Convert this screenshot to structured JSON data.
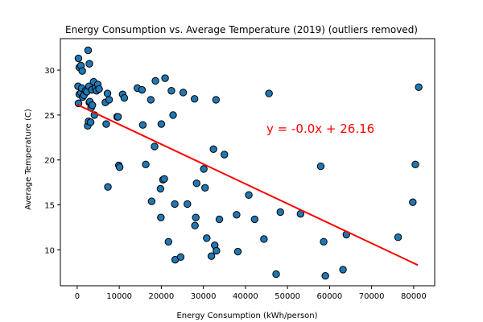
{
  "chart_data": {
    "type": "scatter",
    "title": "Energy Consumption vs. Average Temperature (2019) (outliers removed)",
    "xlabel": "Energy Consumption (kWh/person)",
    "ylabel": "Average Temperature (C)",
    "xlim": [
      -4000,
      85000
    ],
    "ylim": [
      6,
      33.5
    ],
    "xticks": [
      0,
      10000,
      20000,
      30000,
      40000,
      50000,
      60000,
      70000,
      80000
    ],
    "yticks": [
      10,
      15,
      20,
      25,
      30
    ],
    "grid": false,
    "marker_color": "#1f77b4",
    "marker_edge": "#000000",
    "regression": {
      "label": "y = -0.0x + 26.16",
      "color": "#ff0000",
      "x_start": 0,
      "y_start": 26.16,
      "x_end": 81000,
      "y_end": 8.3
    },
    "points": [
      {
        "x": 300,
        "y": 31.3
      },
      {
        "x": 500,
        "y": 30.3
      },
      {
        "x": 900,
        "y": 30.5
      },
      {
        "x": 1200,
        "y": 29.9
      },
      {
        "x": 2600,
        "y": 32.2
      },
      {
        "x": 2900,
        "y": 30.7
      },
      {
        "x": 200,
        "y": 28.2
      },
      {
        "x": 300,
        "y": 26.3
      },
      {
        "x": 500,
        "y": 27.3
      },
      {
        "x": 900,
        "y": 27.5
      },
      {
        "x": 1100,
        "y": 28.0
      },
      {
        "x": 1300,
        "y": 27.0
      },
      {
        "x": 1600,
        "y": 27.2
      },
      {
        "x": 2000,
        "y": 27.7
      },
      {
        "x": 2300,
        "y": 27.6
      },
      {
        "x": 2500,
        "y": 23.8
      },
      {
        "x": 2700,
        "y": 24.3
      },
      {
        "x": 2800,
        "y": 28.2
      },
      {
        "x": 2900,
        "y": 26.4
      },
      {
        "x": 3000,
        "y": 26.5
      },
      {
        "x": 3200,
        "y": 24.2
      },
      {
        "x": 3300,
        "y": 25.8
      },
      {
        "x": 3500,
        "y": 27.8
      },
      {
        "x": 3600,
        "y": 26.1
      },
      {
        "x": 3900,
        "y": 28.7
      },
      {
        "x": 4100,
        "y": 25.0
      },
      {
        "x": 4300,
        "y": 28.0
      },
      {
        "x": 4600,
        "y": 27.7
      },
      {
        "x": 4900,
        "y": 28.4
      },
      {
        "x": 5200,
        "y": 27.9
      },
      {
        "x": 6700,
        "y": 26.4
      },
      {
        "x": 6900,
        "y": 24.0
      },
      {
        "x": 7200,
        "y": 27.4
      },
      {
        "x": 7300,
        "y": 17.0
      },
      {
        "x": 7600,
        "y": 26.7
      },
      {
        "x": 9500,
        "y": 24.8
      },
      {
        "x": 9700,
        "y": 24.8
      },
      {
        "x": 9900,
        "y": 19.4
      },
      {
        "x": 10100,
        "y": 19.2
      },
      {
        "x": 10800,
        "y": 27.3
      },
      {
        "x": 11200,
        "y": 26.9
      },
      {
        "x": 14300,
        "y": 28.0
      },
      {
        "x": 15400,
        "y": 27.8
      },
      {
        "x": 15600,
        "y": 23.9
      },
      {
        "x": 16300,
        "y": 19.5
      },
      {
        "x": 17500,
        "y": 26.7
      },
      {
        "x": 17700,
        "y": 15.4
      },
      {
        "x": 18400,
        "y": 21.5
      },
      {
        "x": 18600,
        "y": 28.8
      },
      {
        "x": 19800,
        "y": 16.8
      },
      {
        "x": 19900,
        "y": 13.6
      },
      {
        "x": 20000,
        "y": 24.0
      },
      {
        "x": 20400,
        "y": 17.8
      },
      {
        "x": 20700,
        "y": 17.9
      },
      {
        "x": 20900,
        "y": 29.1
      },
      {
        "x": 21700,
        "y": 10.9
      },
      {
        "x": 22400,
        "y": 27.7
      },
      {
        "x": 22800,
        "y": 25.0
      },
      {
        "x": 23200,
        "y": 15.1
      },
      {
        "x": 23300,
        "y": 8.9
      },
      {
        "x": 24600,
        "y": 9.2
      },
      {
        "x": 25200,
        "y": 27.5
      },
      {
        "x": 26200,
        "y": 15.1
      },
      {
        "x": 27900,
        "y": 26.8
      },
      {
        "x": 28000,
        "y": 12.7
      },
      {
        "x": 28200,
        "y": 13.6
      },
      {
        "x": 28400,
        "y": 17.4
      },
      {
        "x": 30100,
        "y": 19.0
      },
      {
        "x": 30400,
        "y": 16.9
      },
      {
        "x": 30800,
        "y": 11.3
      },
      {
        "x": 31900,
        "y": 9.3
      },
      {
        "x": 32400,
        "y": 21.2
      },
      {
        "x": 32700,
        "y": 10.5
      },
      {
        "x": 33000,
        "y": 26.7
      },
      {
        "x": 33100,
        "y": 9.9
      },
      {
        "x": 33800,
        "y": 13.4
      },
      {
        "x": 35000,
        "y": 20.6
      },
      {
        "x": 37900,
        "y": 13.9
      },
      {
        "x": 38200,
        "y": 9.8
      },
      {
        "x": 40800,
        "y": 16.1
      },
      {
        "x": 42200,
        "y": 13.4
      },
      {
        "x": 44400,
        "y": 11.2
      },
      {
        "x": 45600,
        "y": 27.4
      },
      {
        "x": 47300,
        "y": 7.3
      },
      {
        "x": 48300,
        "y": 14.2
      },
      {
        "x": 53100,
        "y": 14.0
      },
      {
        "x": 57900,
        "y": 19.3
      },
      {
        "x": 58600,
        "y": 10.9
      },
      {
        "x": 59000,
        "y": 7.1
      },
      {
        "x": 63200,
        "y": 7.8
      },
      {
        "x": 64000,
        "y": 11.7
      },
      {
        "x": 76300,
        "y": 11.4
      },
      {
        "x": 79800,
        "y": 15.3
      },
      {
        "x": 80400,
        "y": 19.5
      },
      {
        "x": 81200,
        "y": 28.1
      }
    ]
  }
}
